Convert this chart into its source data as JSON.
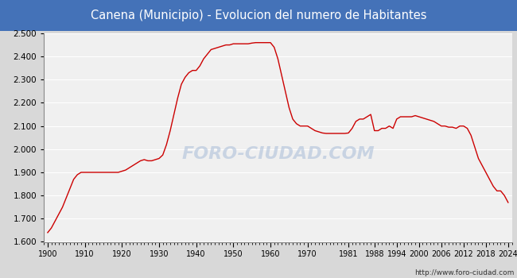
{
  "title": "Canena (Municipio) - Evolucion del numero de Habitantes",
  "title_bgcolor": "#4472b8",
  "title_color": "white",
  "ylim": [
    1600,
    2500
  ],
  "yticks": [
    1600,
    1700,
    1800,
    1900,
    2000,
    2100,
    2200,
    2300,
    2400,
    2500
  ],
  "xticks": [
    1900,
    1910,
    1920,
    1930,
    1940,
    1950,
    1960,
    1970,
    1981,
    1988,
    1994,
    2000,
    2006,
    2012,
    2018,
    2024
  ],
  "xlim": [
    1899,
    2025
  ],
  "line_color": "#cc0000",
  "bg_color": "#d8d8d8",
  "plot_bg_color": "#f0f0f0",
  "grid_color": "white",
  "watermark": "FORO-CIUDAD.COM",
  "url": "http://www.foro-ciudad.com",
  "data": [
    [
      1900,
      1640
    ],
    [
      1901,
      1660
    ],
    [
      1902,
      1690
    ],
    [
      1903,
      1720
    ],
    [
      1904,
      1750
    ],
    [
      1905,
      1790
    ],
    [
      1906,
      1830
    ],
    [
      1907,
      1870
    ],
    [
      1908,
      1890
    ],
    [
      1909,
      1900
    ],
    [
      1910,
      1900
    ],
    [
      1911,
      1900
    ],
    [
      1912,
      1900
    ],
    [
      1913,
      1900
    ],
    [
      1914,
      1900
    ],
    [
      1915,
      1900
    ],
    [
      1916,
      1900
    ],
    [
      1917,
      1900
    ],
    [
      1918,
      1900
    ],
    [
      1919,
      1900
    ],
    [
      1920,
      1905
    ],
    [
      1921,
      1910
    ],
    [
      1922,
      1920
    ],
    [
      1923,
      1930
    ],
    [
      1924,
      1940
    ],
    [
      1925,
      1950
    ],
    [
      1926,
      1955
    ],
    [
      1927,
      1950
    ],
    [
      1928,
      1950
    ],
    [
      1929,
      1955
    ],
    [
      1930,
      1960
    ],
    [
      1931,
      1975
    ],
    [
      1932,
      2020
    ],
    [
      1933,
      2080
    ],
    [
      1934,
      2150
    ],
    [
      1935,
      2220
    ],
    [
      1936,
      2280
    ],
    [
      1937,
      2310
    ],
    [
      1938,
      2330
    ],
    [
      1939,
      2340
    ],
    [
      1940,
      2340
    ],
    [
      1941,
      2360
    ],
    [
      1942,
      2390
    ],
    [
      1943,
      2410
    ],
    [
      1944,
      2430
    ],
    [
      1945,
      2435
    ],
    [
      1946,
      2440
    ],
    [
      1947,
      2445
    ],
    [
      1948,
      2450
    ],
    [
      1949,
      2450
    ],
    [
      1950,
      2455
    ],
    [
      1951,
      2455
    ],
    [
      1952,
      2455
    ],
    [
      1953,
      2455
    ],
    [
      1954,
      2455
    ],
    [
      1955,
      2458
    ],
    [
      1956,
      2460
    ],
    [
      1957,
      2460
    ],
    [
      1958,
      2460
    ],
    [
      1959,
      2460
    ],
    [
      1960,
      2460
    ],
    [
      1961,
      2440
    ],
    [
      1962,
      2390
    ],
    [
      1963,
      2320
    ],
    [
      1964,
      2250
    ],
    [
      1965,
      2180
    ],
    [
      1966,
      2130
    ],
    [
      1967,
      2110
    ],
    [
      1968,
      2100
    ],
    [
      1969,
      2100
    ],
    [
      1970,
      2100
    ],
    [
      1971,
      2090
    ],
    [
      1972,
      2080
    ],
    [
      1973,
      2075
    ],
    [
      1974,
      2070
    ],
    [
      1975,
      2068
    ],
    [
      1976,
      2068
    ],
    [
      1977,
      2068
    ],
    [
      1978,
      2068
    ],
    [
      1979,
      2068
    ],
    [
      1980,
      2068
    ],
    [
      1981,
      2070
    ],
    [
      1982,
      2090
    ],
    [
      1983,
      2120
    ],
    [
      1984,
      2130
    ],
    [
      1985,
      2130
    ],
    [
      1986,
      2140
    ],
    [
      1987,
      2150
    ],
    [
      1988,
      2080
    ],
    [
      1989,
      2080
    ],
    [
      1990,
      2090
    ],
    [
      1991,
      2090
    ],
    [
      1992,
      2100
    ],
    [
      1993,
      2090
    ],
    [
      1994,
      2130
    ],
    [
      1995,
      2140
    ],
    [
      1996,
      2140
    ],
    [
      1997,
      2140
    ],
    [
      1998,
      2140
    ],
    [
      1999,
      2145
    ],
    [
      2000,
      2140
    ],
    [
      2001,
      2135
    ],
    [
      2002,
      2130
    ],
    [
      2003,
      2125
    ],
    [
      2004,
      2120
    ],
    [
      2005,
      2110
    ],
    [
      2006,
      2100
    ],
    [
      2007,
      2100
    ],
    [
      2008,
      2095
    ],
    [
      2009,
      2095
    ],
    [
      2010,
      2090
    ],
    [
      2011,
      2100
    ],
    [
      2012,
      2100
    ],
    [
      2013,
      2090
    ],
    [
      2014,
      2060
    ],
    [
      2015,
      2010
    ],
    [
      2016,
      1960
    ],
    [
      2017,
      1930
    ],
    [
      2018,
      1900
    ],
    [
      2019,
      1870
    ],
    [
      2020,
      1840
    ],
    [
      2021,
      1820
    ],
    [
      2022,
      1820
    ],
    [
      2023,
      1800
    ],
    [
      2024,
      1770
    ]
  ]
}
